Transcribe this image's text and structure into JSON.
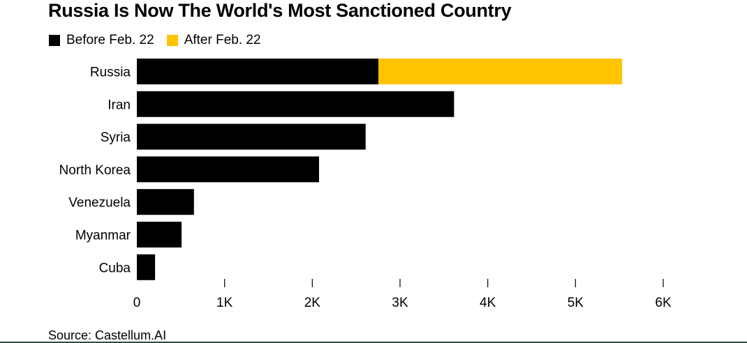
{
  "title": "Russia Is Now The World's Most Sanctioned Country",
  "source": "Source: Castellum.AI",
  "colors": {
    "before": "#000000",
    "after": "#ffc300",
    "axis": "#000000",
    "rule": "#2d4a45"
  },
  "chart_data": {
    "type": "bar",
    "orientation": "horizontal",
    "stacked": true,
    "title": "Russia Is Now The World's Most Sanctioned Country",
    "xlabel": "",
    "ylabel": "",
    "categories": [
      "Russia",
      "Iran",
      "Syria",
      "North Korea",
      "Venezuela",
      "Myanmar",
      "Cuba"
    ],
    "series": [
      {
        "name": "Before Feb. 22",
        "color": "#000000",
        "values": [
          2754,
          3616,
          2608,
          2077,
          651,
          510,
          208
        ]
      },
      {
        "name": "After Feb. 22",
        "color": "#ffc300",
        "values": [
          2778,
          0,
          0,
          0,
          0,
          0,
          0
        ]
      }
    ],
    "xlim": [
      0,
      6000
    ],
    "xticks": [
      0,
      1000,
      2000,
      3000,
      4000,
      5000,
      6000
    ],
    "xtick_labels": [
      "0",
      "1K",
      "2K",
      "3K",
      "4K",
      "5K",
      "6K"
    ],
    "grid": false,
    "legend_position": "top-left"
  }
}
